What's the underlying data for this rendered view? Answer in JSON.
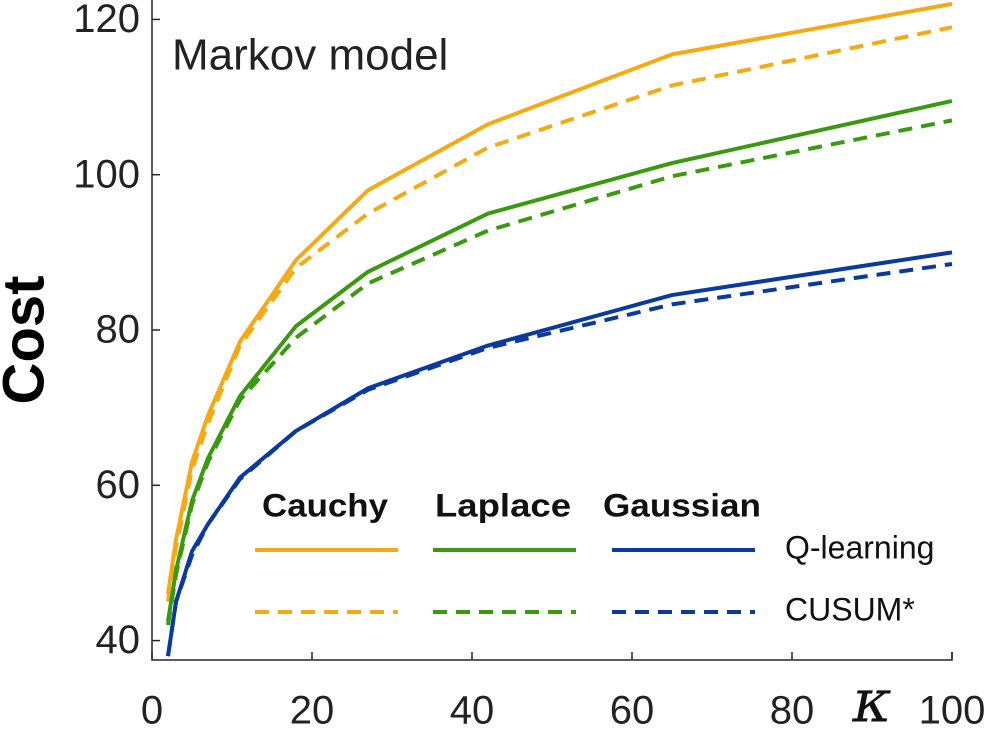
{
  "chart_data": {
    "type": "line",
    "title": "Markov model",
    "y_label": "Cost",
    "x_label": "κ",
    "x": [
      2,
      3,
      5,
      7,
      11,
      18,
      27,
      42,
      65,
      100
    ],
    "xlim": [
      0,
      100
    ],
    "xticks": [
      0,
      20,
      40,
      60,
      80,
      100
    ],
    "ylim": [
      37.5,
      122.5
    ],
    "yticks": [
      40,
      60,
      80,
      100,
      120
    ],
    "legend": {
      "columns": [
        "Cauchy",
        "Laplace",
        "Gaussian"
      ],
      "rows": [
        "Q-learning",
        "CUSUM*"
      ],
      "position": "lower right"
    },
    "series": [
      {
        "column": 0,
        "row": 0,
        "color": "#f5aa14",
        "dashed": false,
        "values": [
          46,
          53,
          63,
          69,
          78.5,
          89,
          98,
          106.5,
          115.5,
          122
        ]
      },
      {
        "column": 0,
        "row": 1,
        "color": "#f5aa14",
        "dashed": true,
        "values": [
          45,
          52,
          62,
          68,
          78,
          88,
          95,
          103.5,
          111.5,
          119
        ]
      },
      {
        "column": 1,
        "row": 0,
        "color": "#3a9a0f",
        "dashed": false,
        "values": [
          42.5,
          49,
          58,
          63.5,
          71.5,
          80.5,
          87.5,
          95,
          101.5,
          109.5
        ]
      },
      {
        "column": 1,
        "row": 1,
        "color": "#3a9a0f",
        "dashed": true,
        "values": [
          42,
          48.5,
          57.5,
          63,
          71,
          79,
          86,
          92.8,
          99.8,
          107
        ]
      },
      {
        "column": 2,
        "row": 0,
        "color": "#0a3a9e",
        "dashed": false,
        "values": [
          38,
          45,
          51.5,
          55,
          61,
          67,
          72.5,
          78,
          84.5,
          90
        ]
      },
      {
        "column": 2,
        "row": 1,
        "color": "#0a3a9e",
        "dashed": true,
        "values": [
          38,
          45,
          51,
          55,
          60.8,
          67,
          72.3,
          77.7,
          83.3,
          88.5
        ]
      }
    ]
  }
}
